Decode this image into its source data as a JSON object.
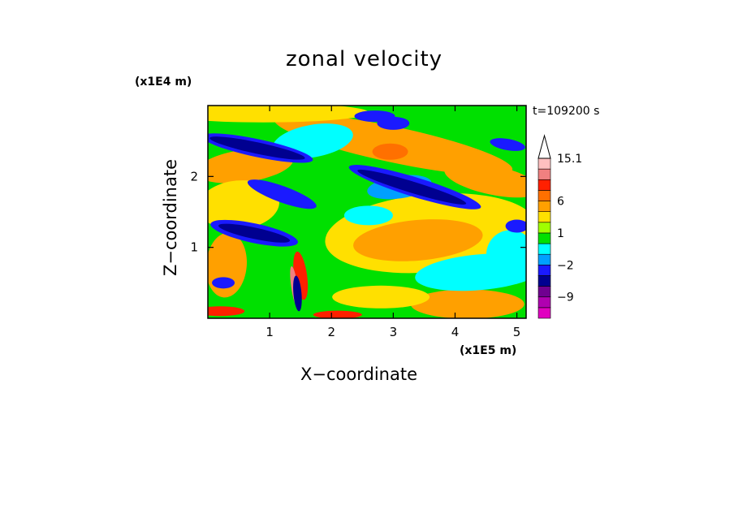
{
  "chart_data": {
    "type": "heatmap",
    "title": "zonal velocity",
    "time_label": "t=109200 s",
    "xlabel": "X−coordinate",
    "ylabel": "Z−coordinate",
    "x_unit_label": "(x1E5 m)",
    "y_unit_label": "(x1E4 m)",
    "xlim": [
      0,
      5.15
    ],
    "ylim": [
      0,
      3.0
    ],
    "x_ticks": [
      "1",
      "2",
      "3",
      "4",
      "5"
    ],
    "y_ticks": [
      "1",
      "2"
    ],
    "colorbar": {
      "levels": [
        -15,
        -12,
        -9,
        -6,
        -4,
        -2,
        -1,
        0,
        1,
        2,
        4,
        6,
        9,
        12,
        15.1
      ],
      "tick_labels": [
        "15.1",
        "6",
        "1",
        "−2",
        "−9"
      ],
      "colors": [
        "#e000c0",
        "#b000b0",
        "#700090",
        "#000090",
        "#1a1aff",
        "#00a0ff",
        "#00ffff",
        "#00e000",
        "#a0ff00",
        "#ffe000",
        "#ffa000",
        "#ff7000",
        "#ff2000",
        "#f08080",
        "#ffc0c0"
      ]
    },
    "grid": false
  }
}
